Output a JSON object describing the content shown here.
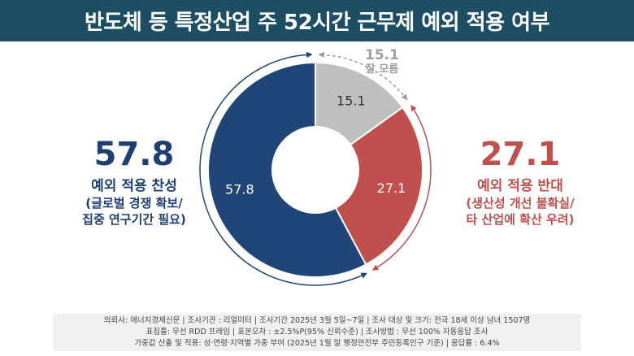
{
  "title": "반도체 등 특정산업 주 52시간 근무제 예외 적용 여부",
  "chart_data": {
    "type": "pie",
    "donut": true,
    "categories": [
      "잘 모름",
      "예외 적용 반대",
      "예외 적용 찬성"
    ],
    "values": [
      15.1,
      27.1,
      57.8
    ],
    "colors": [
      "#bfbfbf",
      "#c0504d",
      "#1f4579"
    ]
  },
  "callouts": {
    "support": {
      "value": "57.8",
      "label": "예외 적용 찬성",
      "sub1": "(글로벌 경쟁 확보/",
      "sub2": "집중 연구기간 필요)"
    },
    "oppose": {
      "value": "27.1",
      "label": "예외 적용 반대",
      "sub1": "(생산성 개선 불확실/",
      "sub2": "타 산업에 확산 우려)"
    },
    "unknown": {
      "value": "15.1",
      "label": "잘 모름"
    }
  },
  "slice_labels": [
    "15.1",
    "27.1",
    "57.8"
  ],
  "footer": {
    "line1": "의뢰사: 에너지경제신문 | 조사기관 : 리얼미터  |  조사기간 2025년 3월 5일~7일 | 조사 대상 및 크기: 전국 18세 이상 남녀 1507명",
    "line2": "표집틀: 무선 RDD 프레임 | 표본오차 : ±2.5%P(95% 신뢰수준) | 조사방법 : 무선 100% 자동응답 조사",
    "line3": "가중값 산출 및 적용: 성·연령·지역별 가중 부여 (2025년 1월 말 행정안전부 주민등록인구 기준) | 응답률 : 6.4%"
  }
}
